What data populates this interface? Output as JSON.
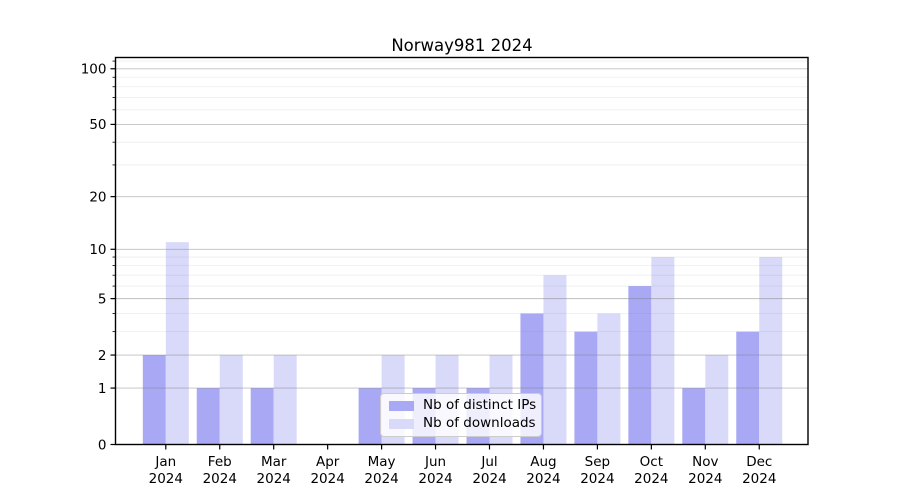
{
  "chart_data": {
    "type": "bar",
    "title": "Norway981 2024",
    "yscale": "log1p",
    "grid": true,
    "legend_position": "lower center",
    "categories": [
      "Jan 2024",
      "Feb 2024",
      "Mar 2024",
      "Apr 2024",
      "May 2024",
      "Jun 2024",
      "Jul 2024",
      "Aug 2024",
      "Sep 2024",
      "Oct 2024",
      "Nov 2024",
      "Dec 2024"
    ],
    "series": [
      {
        "name": "Nb of distinct IPs",
        "color": "#a8a8f5",
        "values": [
          2,
          1,
          1,
          0,
          1,
          1,
          1,
          4,
          3,
          6,
          1,
          3
        ]
      },
      {
        "name": "Nb of downloads",
        "color": "#d9d9fa",
        "values": [
          11,
          2,
          2,
          0,
          2,
          2,
          2,
          7,
          4,
          9,
          2,
          9
        ]
      }
    ],
    "y_ticks": [
      0,
      1,
      2,
      5,
      10,
      20,
      50,
      100
    ],
    "y_minor_ticks": [
      3,
      4,
      6,
      7,
      8,
      9,
      30,
      40,
      60,
      70,
      80,
      90,
      110
    ],
    "ylim": [
      0,
      115
    ],
    "xlabel": "",
    "ylabel": "",
    "axis_color": "#000000",
    "grid_major_color": "#808080",
    "grid_minor_color": "#808080"
  }
}
